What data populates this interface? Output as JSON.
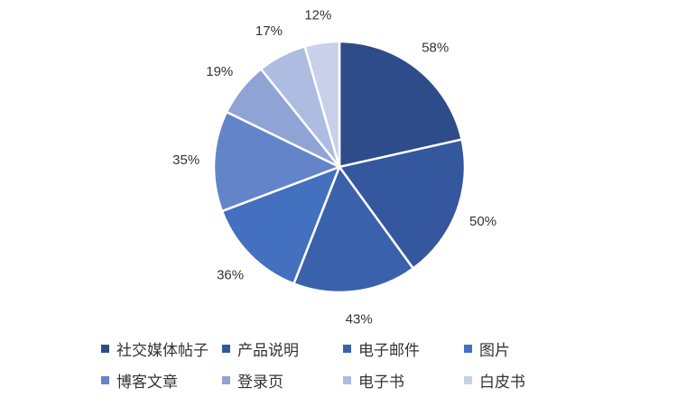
{
  "chart_data": {
    "type": "pie",
    "categories": [
      "社交媒体帖子",
      "产品说明",
      "电子邮件",
      "图片",
      "博客文章",
      "登录页",
      "电子书",
      "白皮书"
    ],
    "values": [
      58,
      50,
      43,
      36,
      35,
      19,
      17,
      12
    ],
    "labels": [
      "58%",
      "50%",
      "43%",
      "36%",
      "35%",
      "19%",
      "17%",
      "12%"
    ],
    "colors": [
      "#2E4C89",
      "#34579E",
      "#3A61AC",
      "#4370BF",
      "#6484C9",
      "#8FA3D4",
      "#AFBCE1",
      "#C8D0EA"
    ],
    "start_angle": "12 o'clock",
    "direction": "clockwise",
    "legend_position": "bottom"
  }
}
